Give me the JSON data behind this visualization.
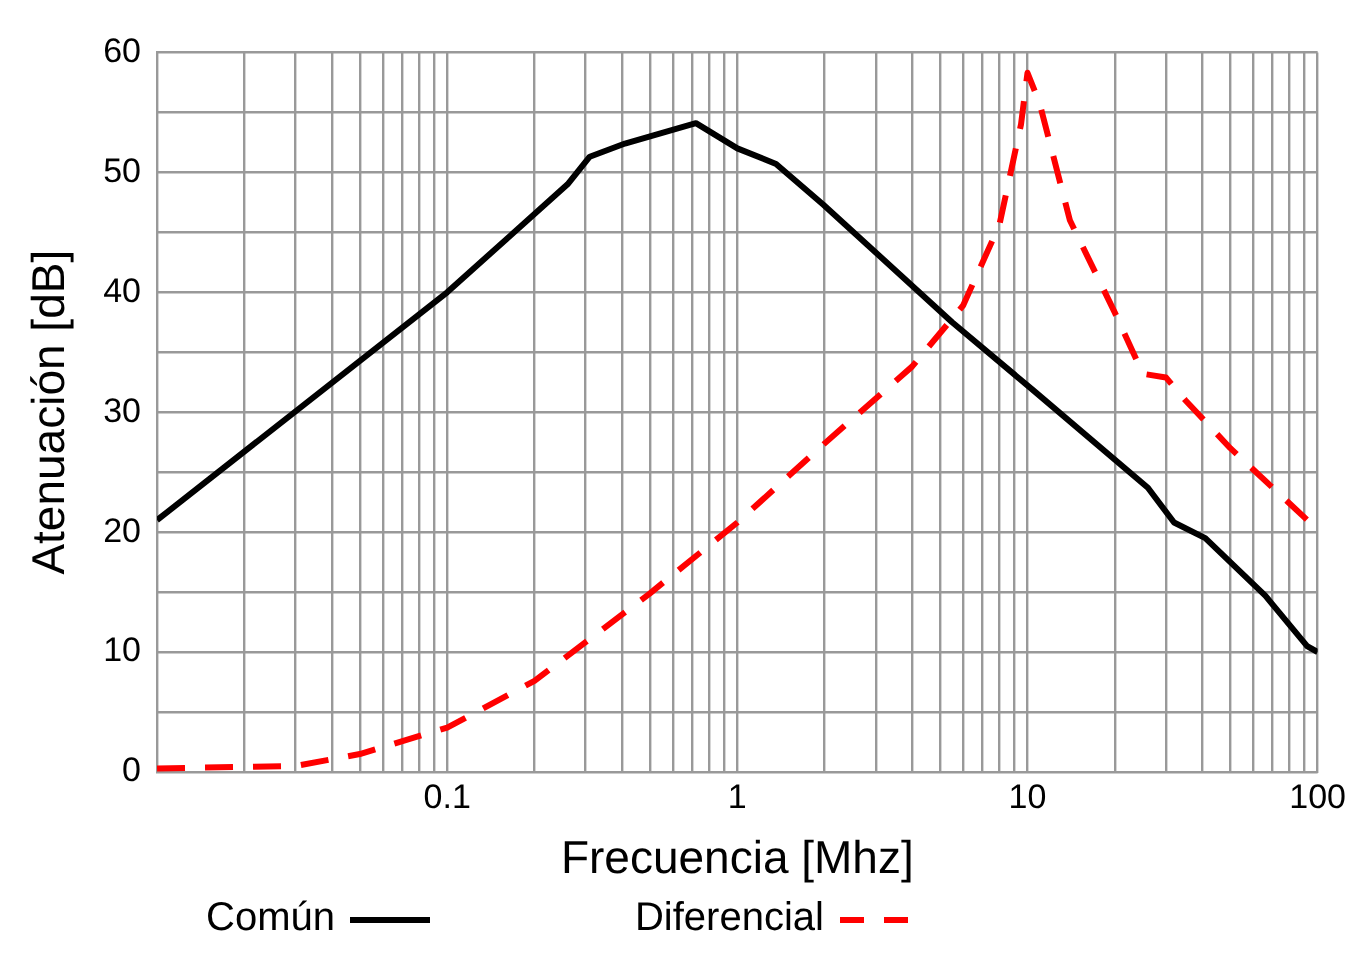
{
  "chart_data": {
    "type": "line",
    "xlabel": "Frecuencia [Mhz]",
    "ylabel": "Atenuación [dB]",
    "log": "x",
    "xlim": [
      0.01,
      100
    ],
    "ylim": [
      0,
      60
    ],
    "xticks": [
      {
        "value": 0.01,
        "label": null
      },
      {
        "value": 0.02,
        "label": null
      },
      {
        "value": 0.03,
        "label": null
      },
      {
        "value": 0.04,
        "label": null
      },
      {
        "value": 0.05,
        "label": null
      },
      {
        "value": 0.06,
        "label": null
      },
      {
        "value": 0.07,
        "label": null
      },
      {
        "value": 0.08,
        "label": null
      },
      {
        "value": 0.09,
        "label": null
      },
      0.1,
      {
        "value": 0.2,
        "label": null
      },
      {
        "value": 0.3,
        "label": null
      },
      {
        "value": 0.4,
        "label": null
      },
      {
        "value": 0.5,
        "label": null
      },
      {
        "value": 0.6,
        "label": null
      },
      {
        "value": 0.7,
        "label": null
      },
      {
        "value": 0.8,
        "label": null
      },
      {
        "value": 0.9,
        "label": null
      },
      1,
      {
        "value": 2,
        "label": null
      },
      {
        "value": 3,
        "label": null
      },
      {
        "value": 4,
        "label": null
      },
      {
        "value": 5,
        "label": null
      },
      {
        "value": 6,
        "label": null
      },
      {
        "value": 7,
        "label": null
      },
      {
        "value": 8,
        "label": null
      },
      {
        "value": 9,
        "label": null
      },
      10,
      {
        "value": 20,
        "label": null
      },
      {
        "value": 30,
        "label": null
      },
      {
        "value": 40,
        "label": null
      },
      {
        "value": 50,
        "label": null
      },
      {
        "value": 60,
        "label": null
      },
      {
        "value": 70,
        "label": null
      },
      {
        "value": 80,
        "label": null
      },
      {
        "value": 90,
        "label": null
      },
      100
    ],
    "yticks": [
      0,
      {
        "value": 5,
        "label": null
      },
      10,
      {
        "value": 15,
        "label": null
      },
      20,
      {
        "value": 25,
        "label": null
      },
      30,
      {
        "value": 35,
        "label": null
      },
      40,
      {
        "value": 45,
        "label": null
      },
      50,
      {
        "value": 55,
        "label": null
      },
      60
    ],
    "grid": true,
    "legend": "bottom",
    "marker": "none",
    "series": [
      {
        "name": "Común",
        "color": "#000000",
        "line_style": "solid",
        "x": [
          0.01,
          0.1,
          0.26,
          0.31,
          0.41,
          0.72,
          1,
          1.36,
          1.98,
          5.5,
          10.5,
          26,
          32,
          41,
          66,
          92,
          100
        ],
        "values": [
          21,
          40,
          49,
          51.3,
          52.4,
          54.1,
          52,
          50.7,
          47.3,
          37.5,
          31.8,
          23.7,
          20.8,
          19.5,
          14.7,
          10.5,
          10
        ]
      },
      {
        "name": "Diferencial",
        "color": "#ff0000",
        "line_style": "dashed",
        "x": [
          0.01,
          0.03,
          0.05,
          0.1,
          0.2,
          0.5,
          1,
          2,
          4,
          6,
          8,
          9.5,
          10,
          11,
          14,
          20,
          25,
          30,
          35,
          50,
          100
        ],
        "values": [
          0.3,
          0.5,
          1.5,
          3.7,
          7.6,
          14.9,
          20.8,
          27.4,
          33.8,
          38.9,
          45.6,
          54,
          58.3,
          55.8,
          46,
          38.3,
          33.2,
          32.9,
          31,
          27,
          20.2
        ]
      }
    ]
  }
}
